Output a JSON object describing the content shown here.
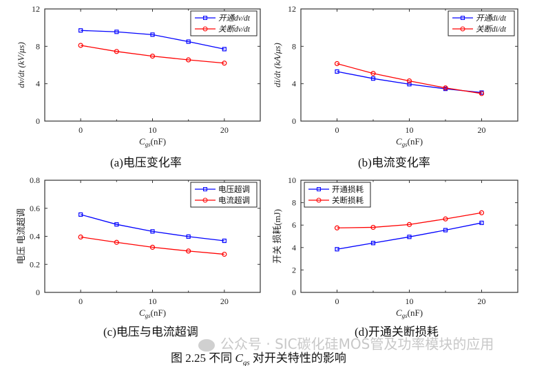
{
  "chart_data": [
    {
      "type": "line",
      "caption": "(a)电压变化率",
      "xlabel": "Cgs",
      "xlabel_sub": "gs",
      "xlabel_unit": "(nF)",
      "ylabel": "dv/dt (kV/μs)",
      "xlim": [
        -5,
        25
      ],
      "ylim": [
        0,
        12
      ],
      "xticks": [
        0,
        10,
        20
      ],
      "yticks": [
        0,
        4,
        8,
        12
      ],
      "legend_position": "top-right",
      "x": [
        0,
        5,
        10,
        15,
        20
      ],
      "series": [
        {
          "name": "开通dv/dt",
          "color": "#0000ff",
          "marker": "square",
          "values": [
            9.7,
            9.55,
            9.25,
            8.5,
            7.7
          ]
        },
        {
          "name": "关断dv/dt",
          "color": "#ff0000",
          "marker": "circle",
          "values": [
            8.1,
            7.45,
            6.95,
            6.55,
            6.2
          ]
        }
      ]
    },
    {
      "type": "line",
      "caption": "(b)电流变化率",
      "xlabel": "Cgs",
      "xlabel_sub": "gs",
      "xlabel_unit": "(nF)",
      "ylabel": "di/dt (kA/μs)",
      "xlim": [
        -5,
        25
      ],
      "ylim": [
        0,
        12
      ],
      "xticks": [
        0,
        10,
        20
      ],
      "yticks": [
        0,
        4,
        8,
        12
      ],
      "legend_position": "top-right",
      "x": [
        0,
        5,
        10,
        15,
        20
      ],
      "series": [
        {
          "name": "开通di/dt",
          "color": "#0000ff",
          "marker": "square",
          "values": [
            5.3,
            4.55,
            3.95,
            3.45,
            3.05
          ]
        },
        {
          "name": "关断di/dt",
          "color": "#ff0000",
          "marker": "circle",
          "values": [
            6.15,
            5.1,
            4.3,
            3.55,
            2.95
          ]
        }
      ]
    },
    {
      "type": "line",
      "caption": "(c)电压与电流超调",
      "xlabel": "Cgs",
      "xlabel_sub": "gs",
      "xlabel_unit": "(nF)",
      "ylabel": "电压 电流超调",
      "xlim": [
        -5,
        25
      ],
      "ylim": [
        0,
        0.8
      ],
      "xticks": [
        0,
        10,
        20
      ],
      "yticks": [
        0,
        0.2,
        0.4,
        0.6,
        0.8
      ],
      "legend_position": "top-right",
      "x": [
        0,
        5,
        10,
        15,
        20
      ],
      "series": [
        {
          "name": "电压超调",
          "color": "#0000ff",
          "marker": "square",
          "values": [
            0.555,
            0.485,
            0.435,
            0.398,
            0.368
          ]
        },
        {
          "name": "电流超调",
          "color": "#ff0000",
          "marker": "circle",
          "values": [
            0.395,
            0.357,
            0.322,
            0.295,
            0.272
          ]
        }
      ]
    },
    {
      "type": "line",
      "caption": "(d)开通关断损耗",
      "xlabel": "Cgs",
      "xlabel_sub": "gs",
      "xlabel_unit": "(nF)",
      "ylabel": "开关 损耗(mJ)",
      "xlim": [
        -5,
        25
      ],
      "ylim": [
        0,
        10
      ],
      "xticks": [
        0,
        10,
        20
      ],
      "yticks": [
        0,
        2,
        4,
        6,
        8,
        10
      ],
      "legend_position": "top-left",
      "x": [
        0,
        5,
        10,
        15,
        20
      ],
      "series": [
        {
          "name": "开通损耗",
          "color": "#0000ff",
          "marker": "square",
          "values": [
            3.85,
            4.4,
            4.95,
            5.55,
            6.2
          ]
        },
        {
          "name": "关断损耗",
          "color": "#ff0000",
          "marker": "circle",
          "values": [
            5.75,
            5.8,
            6.05,
            6.55,
            7.1
          ]
        }
      ]
    }
  ],
  "figure_caption": {
    "prefix": "图 2.25  不同 ",
    "var": "C",
    "sub": "gs",
    "suffix": " 对开关特性的影响"
  },
  "watermark": "公众号 · SIC碳化硅MOS管及功率模块的应用"
}
